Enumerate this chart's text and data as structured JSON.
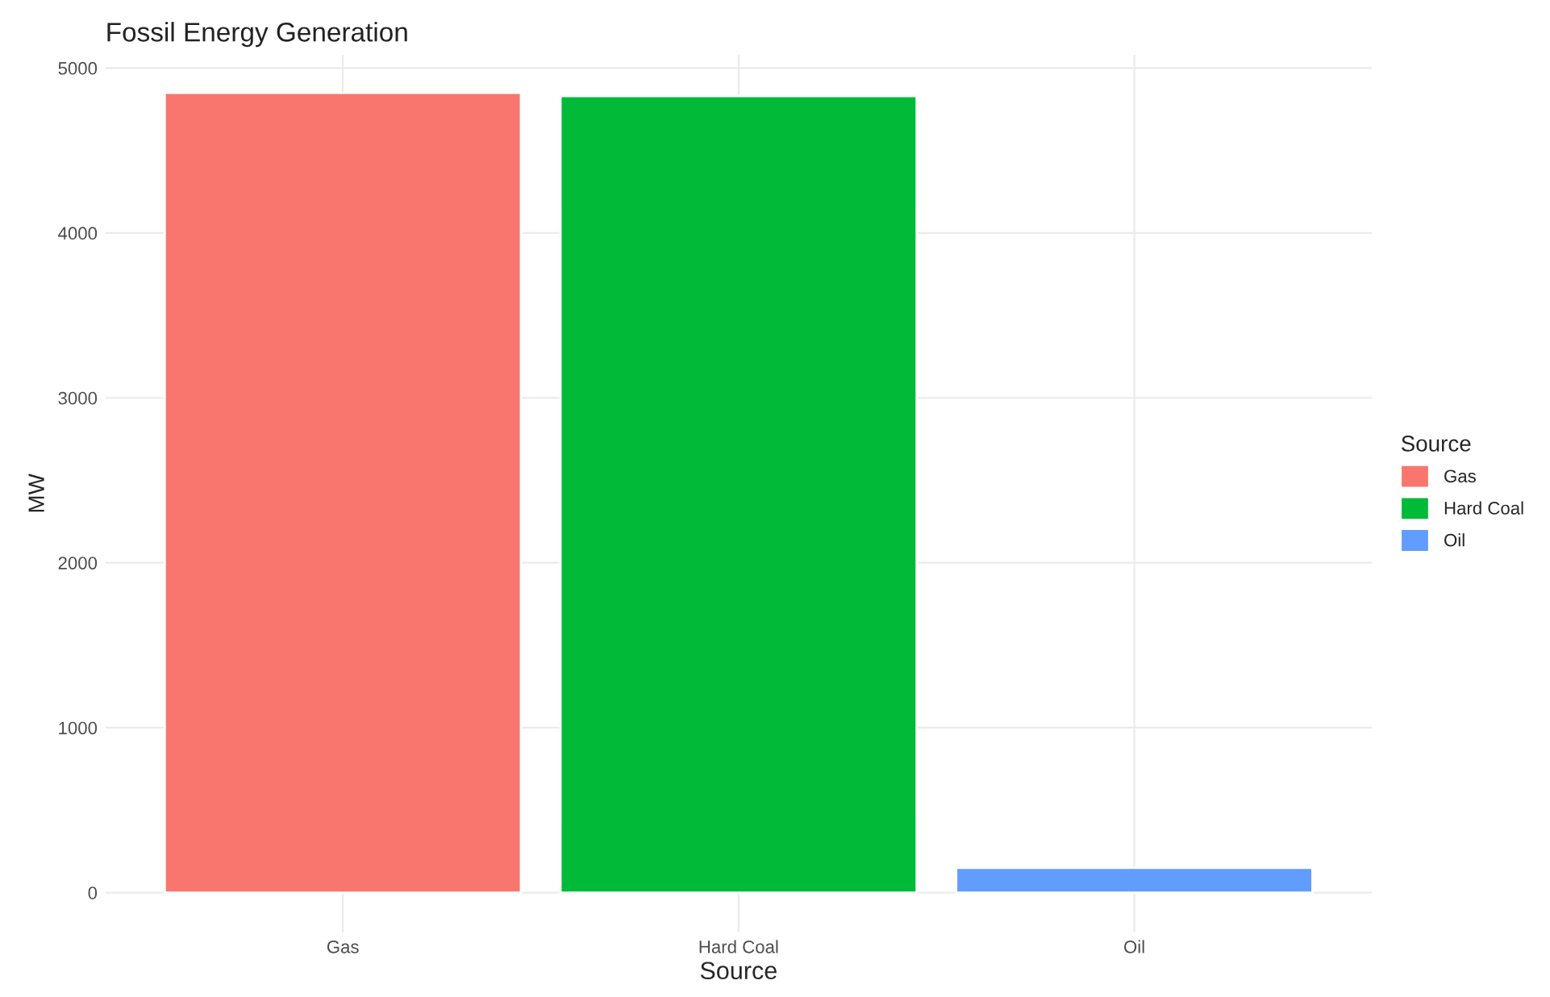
{
  "chart_data": {
    "type": "bar",
    "title": "Fossil Energy Generation",
    "xlabel": "Source",
    "ylabel": "MW",
    "legend_title": "Source",
    "categories": [
      "Gas",
      "Hard Coal",
      "Oil"
    ],
    "series": [
      {
        "name": "Gas",
        "color": "#f8766d",
        "values": [
          4850,
          null,
          null
        ]
      },
      {
        "name": "Hard Coal",
        "color": "#00ba38",
        "values": [
          null,
          4830,
          null
        ]
      },
      {
        "name": "Oil",
        "color": "#619cff",
        "values": [
          null,
          null,
          150
        ]
      }
    ],
    "ylim": [
      -240,
      5080
    ],
    "yticks": [
      0,
      1000,
      2000,
      3000,
      4000,
      5000
    ],
    "grid": true,
    "legend": "right"
  }
}
